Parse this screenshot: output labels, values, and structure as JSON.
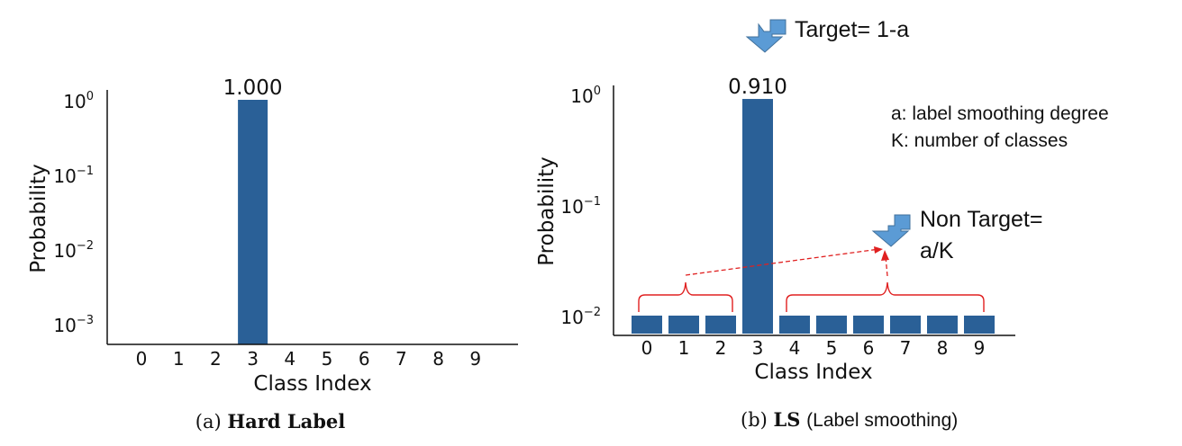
{
  "chart_data": [
    {
      "type": "bar",
      "categories": [
        "0",
        "1",
        "2",
        "3",
        "4",
        "5",
        "6",
        "7",
        "8",
        "9"
      ],
      "values": [
        0,
        0,
        0,
        1.0,
        0,
        0,
        0,
        0,
        0,
        0
      ],
      "data_labels": [
        {
          "category": "3",
          "text": "1.000"
        }
      ],
      "xlabel": "Class Index",
      "ylabel": "Probability",
      "yscale": "log",
      "ylim": [
        0.0005,
        1.3
      ],
      "ytick_labels": [
        {
          "base": "10",
          "exp": "0"
        },
        {
          "base": "10",
          "exp": "−1"
        },
        {
          "base": "10",
          "exp": "−2"
        },
        {
          "base": "10",
          "exp": "−3"
        }
      ],
      "caption": {
        "label": "(a)",
        "name": "Hard Label"
      },
      "bar_color": "#2a6097",
      "grid": false
    },
    {
      "type": "bar",
      "categories": [
        "0",
        "1",
        "2",
        "3",
        "4",
        "5",
        "6",
        "7",
        "8",
        "9"
      ],
      "values": [
        0.01,
        0.01,
        0.01,
        0.91,
        0.01,
        0.01,
        0.01,
        0.01,
        0.01,
        0.01
      ],
      "data_labels": [
        {
          "category": "3",
          "text": "0.910"
        }
      ],
      "xlabel": "Class Index",
      "ylabel": "Probability",
      "yscale": "log",
      "ylim": [
        0.0075,
        1.3
      ],
      "ytick_labels": [
        {
          "base": "10",
          "exp": "0"
        },
        {
          "base": "10",
          "exp": "−1"
        },
        {
          "base": "10",
          "exp": "−2"
        }
      ],
      "caption": {
        "label": "(b)",
        "name": "LS",
        "extra": "(Label smoothing)"
      },
      "bar_color": "#2a6097",
      "grid": false,
      "annotations": {
        "target": "Target= 1-a",
        "non_target_line1": "Non Target=",
        "non_target_line2": "a/K",
        "legend_line1": "a: label smoothing degree",
        "legend_line2": "K: number of classes",
        "arrow_color": "#5b9bd5",
        "brace_color": "#e02020"
      }
    }
  ]
}
